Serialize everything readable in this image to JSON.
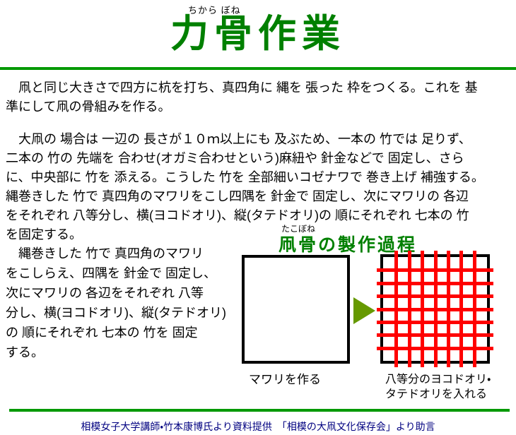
{
  "header": {
    "furigana": "ちから ぼね",
    "title": "力骨作業",
    "title_color": "#008000"
  },
  "rules": {
    "color": "#009900"
  },
  "paragraphs": {
    "p1_lines": [
      "　凧と同じ大きさで四方に杭を打ち、真四角に 縄を 張った 枠をつくる。これを 基",
      "準にして凧の骨組みを作る。"
    ],
    "p2_lines": [
      "　大凧の 場合は 一辺の 長さが１０ｍ以上にも 及ぶため、一本の 竹では 足りず、",
      "二本の 竹の 先端を 合わせ(オガミ合わせという)麻紐や 針金などで 固定し、さら",
      "に、中央部に 竹を 添える。こうした 竹を 全部細いコゼナワで 巻き上げ 補強する。",
      "縄巻きした 竹で 真四角のマワリをこし四隅を 針金で 固定し、次にマワリの 各辺",
      "をそれぞれ 八等分し、横(ヨコドオリ)、縦(タテドオリ)の 順にそれぞれ 七本の 竹",
      "を固定する。"
    ],
    "p3_lines": [
      "　縄巻きした 竹で 真四角のマワリ",
      "をこしらえ、四隅を 針金で 固定し、",
      "次にマワリの 各辺をそれぞれ 八等",
      "分し、横(ヨコドオリ)、縦(タテドオリ)",
      "の 順にそれぞれ 七本の 竹を 固定",
      "する。"
    ]
  },
  "diagram": {
    "heading_furigana": "たこぼね",
    "heading": "凧骨の製作過程",
    "heading_color": "#008000",
    "arrow_icon": "right-triangle-arrow",
    "arrow_color": "#669900",
    "grid": {
      "divisions": 8,
      "line_color": "#ff0000",
      "border_color": "#000000"
    },
    "caption_left": "マワリを作る",
    "caption_right_lines": [
      "八等分のヨコドオリ・",
      "タテドオリを入れる"
    ]
  },
  "footer": {
    "credit": "相模女子大学講師・竹本康博氏より資料提供　「相模の大凧文化保存会」より助言",
    "text_color": "#000080"
  }
}
